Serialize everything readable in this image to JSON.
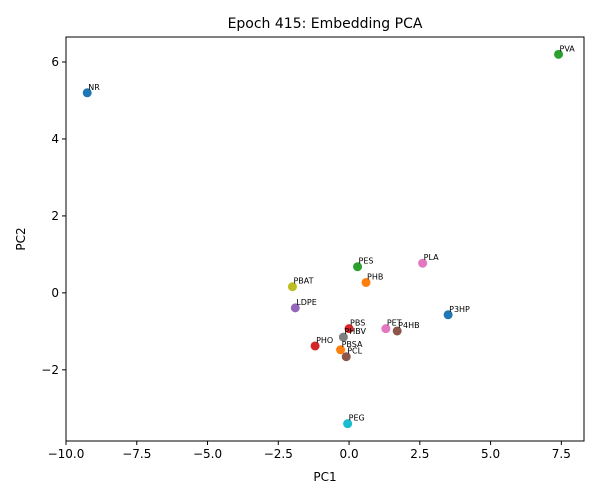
{
  "chart_data": {
    "type": "scatter",
    "title": "Epoch 415: Embedding PCA",
    "xlabel": "PC1",
    "ylabel": "PC2",
    "xlim": [
      -10.0,
      8.3
    ],
    "ylim": [
      -3.85,
      6.65
    ],
    "xticks": [
      -10.0,
      -7.5,
      -5.0,
      -2.5,
      0.0,
      2.5,
      5.0,
      7.5
    ],
    "xtick_labels": [
      "−10.0",
      "−7.5",
      "−5.0",
      "−2.5",
      "0.0",
      "2.5",
      "5.0",
      "7.5"
    ],
    "yticks": [
      -2,
      0,
      2,
      4,
      6
    ],
    "ytick_labels": [
      "−2",
      "0",
      "2",
      "4",
      "6"
    ],
    "grid": false,
    "points": [
      {
        "label": "NR",
        "x": -9.25,
        "y": 5.2,
        "color": "#1f77b4"
      },
      {
        "label": "PVA",
        "x": 7.4,
        "y": 6.2,
        "color": "#2ca02c"
      },
      {
        "label": "PES",
        "x": 0.3,
        "y": 0.68,
        "color": "#2ca02c"
      },
      {
        "label": "PHB",
        "x": 0.6,
        "y": 0.27,
        "color": "#ff7f0e"
      },
      {
        "label": "PLA",
        "x": 2.6,
        "y": 0.77,
        "color": "#e377c2"
      },
      {
        "label": "PBAT",
        "x": -2.0,
        "y": 0.16,
        "color": "#bcbd22"
      },
      {
        "label": "LDPE",
        "x": -1.9,
        "y": -0.39,
        "color": "#9467bd"
      },
      {
        "label": "P3HP",
        "x": 3.5,
        "y": -0.57,
        "color": "#1f77b4"
      },
      {
        "label": "PBS",
        "x": 0.0,
        "y": -0.93,
        "color": "#d62728"
      },
      {
        "label": "PET",
        "x": 1.3,
        "y": -0.93,
        "color": "#e377c2"
      },
      {
        "label": "P4HB",
        "x": 1.7,
        "y": -0.99,
        "color": "#8c564b"
      },
      {
        "label": "PHBV",
        "x": -0.2,
        "y": -1.15,
        "color": "#7f7f7f"
      },
      {
        "label": "PHO",
        "x": -1.2,
        "y": -1.38,
        "color": "#d62728"
      },
      {
        "label": "PBSA",
        "x": -0.3,
        "y": -1.48,
        "color": "#ff7f0e"
      },
      {
        "label": "PCL",
        "x": -0.1,
        "y": -1.66,
        "color": "#8c564b"
      },
      {
        "label": "PEG",
        "x": -0.05,
        "y": -3.4,
        "color": "#17becf"
      }
    ]
  }
}
